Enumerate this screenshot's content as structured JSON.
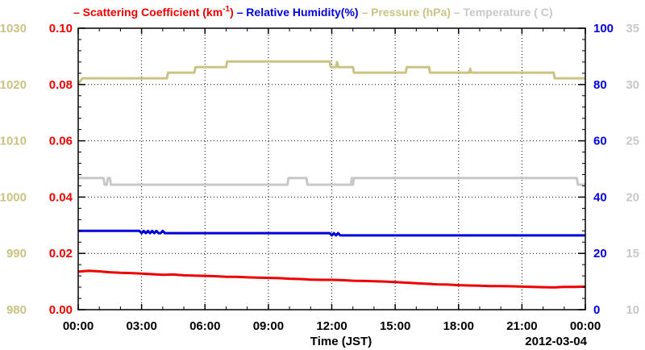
{
  "colors": {
    "scattering": "#ee0000",
    "humidity": "#0000dd",
    "pressure": "#cbc384",
    "temperature": "#c8c8c8",
    "frame": "#000000"
  },
  "legend": [
    {
      "prefix": "– ",
      "label": "Scattering Coefficient (km",
      "sup": "-1",
      "suffix": ")",
      "color_key": "scattering"
    },
    {
      "prefix": "– ",
      "label": "Relative Humidity(%)",
      "sup": "",
      "suffix": "",
      "color_key": "humidity"
    },
    {
      "prefix": "– ",
      "label": "Pressure (hPa)",
      "sup": "",
      "suffix": "",
      "color_key": "pressure"
    },
    {
      "prefix": "– ",
      "label": "Temperature (",
      "sup": "",
      "suffix": "C)",
      "color_key": "temperature"
    }
  ],
  "chart_data": {
    "type": "line",
    "xlabel": "Time (JST)",
    "date_label": "2012-03-04",
    "x_ticks": [
      "00:00",
      "03:00",
      "06:00",
      "09:00",
      "12:00",
      "15:00",
      "18:00",
      "21:00",
      "00:00"
    ],
    "xlim": [
      "00:00",
      "24:00"
    ],
    "grid": true,
    "axes": {
      "pressure": {
        "side": "left-outer",
        "ylim": [
          980,
          1030
        ],
        "ticks": [
          "980",
          "990",
          "1000",
          "1010",
          "1020",
          "1030"
        ]
      },
      "scattering": {
        "side": "left-inner",
        "ylim": [
          0.0,
          0.1
        ],
        "ticks": [
          "0.00",
          "0.02",
          "0.04",
          "0.06",
          "0.08",
          "0.10"
        ]
      },
      "humidity": {
        "side": "right-inner",
        "ylim": [
          0,
          100
        ],
        "ticks": [
          "0",
          "20",
          "40",
          "60",
          "80",
          "100"
        ]
      },
      "temperature": {
        "side": "right-outer",
        "ylim": [
          10,
          35
        ],
        "ticks": [
          "10",
          "15",
          "20",
          "25",
          "30",
          "35"
        ]
      }
    },
    "series": [
      {
        "name": "Pressure (hPa)",
        "axis": "pressure",
        "points": [
          [
            0.0,
            1020.1
          ],
          [
            0.2,
            1021.1
          ],
          [
            4.2,
            1021.1
          ],
          [
            4.25,
            1022.1
          ],
          [
            5.5,
            1022.1
          ],
          [
            5.55,
            1023.1
          ],
          [
            7.0,
            1023.1
          ],
          [
            7.05,
            1024.1
          ],
          [
            11.9,
            1024.1
          ],
          [
            11.95,
            1023.1
          ],
          [
            12.2,
            1023.1
          ],
          [
            12.25,
            1024.0
          ],
          [
            12.3,
            1023.1
          ],
          [
            13.0,
            1023.1
          ],
          [
            13.05,
            1022.1
          ],
          [
            15.5,
            1022.1
          ],
          [
            15.55,
            1023.1
          ],
          [
            16.6,
            1023.1
          ],
          [
            16.65,
            1022.1
          ],
          [
            18.5,
            1022.1
          ],
          [
            18.55,
            1022.8
          ],
          [
            18.6,
            1022.1
          ],
          [
            22.5,
            1022.1
          ],
          [
            22.55,
            1021.1
          ],
          [
            24.0,
            1021.1
          ]
        ]
      },
      {
        "name": "Temperature (C)",
        "axis": "temperature",
        "points": [
          [
            0.0,
            21.7
          ],
          [
            1.2,
            21.7
          ],
          [
            1.25,
            21.1
          ],
          [
            1.35,
            21.1
          ],
          [
            1.4,
            21.7
          ],
          [
            1.5,
            21.7
          ],
          [
            1.55,
            21.1
          ],
          [
            1.65,
            21.1
          ],
          [
            1.7,
            21.1
          ],
          [
            9.9,
            21.1
          ],
          [
            9.95,
            21.7
          ],
          [
            10.8,
            21.7
          ],
          [
            10.85,
            21.1
          ],
          [
            12.9,
            21.1
          ],
          [
            12.95,
            21.7
          ],
          [
            13.0,
            21.1
          ],
          [
            13.05,
            21.7
          ],
          [
            23.6,
            21.7
          ],
          [
            23.65,
            21.1
          ],
          [
            24.0,
            21.1
          ]
        ]
      },
      {
        "name": "Relative Humidity(%)",
        "axis": "humidity",
        "points": [
          [
            0.0,
            28.0
          ],
          [
            2.9,
            28.0
          ],
          [
            3.0,
            27.2
          ],
          [
            3.1,
            28.0
          ],
          [
            3.2,
            27.2
          ],
          [
            3.3,
            28.0
          ],
          [
            3.4,
            27.2
          ],
          [
            3.5,
            28.0
          ],
          [
            3.6,
            27.2
          ],
          [
            3.7,
            28.0
          ],
          [
            3.8,
            27.2
          ],
          [
            3.9,
            27.2
          ],
          [
            4.0,
            28.0
          ],
          [
            4.1,
            27.2
          ],
          [
            4.2,
            27.2
          ],
          [
            11.9,
            27.2
          ],
          [
            12.0,
            26.4
          ],
          [
            12.1,
            27.2
          ],
          [
            12.2,
            26.4
          ],
          [
            12.3,
            27.2
          ],
          [
            12.4,
            26.4
          ],
          [
            24.0,
            26.4
          ]
        ]
      },
      {
        "name": "Scattering Coefficient (km-1)",
        "axis": "scattering",
        "points": [
          [
            0.0,
            0.0135
          ],
          [
            0.5,
            0.0138
          ],
          [
            1.0,
            0.0136
          ],
          [
            1.5,
            0.0133
          ],
          [
            2.0,
            0.0131
          ],
          [
            2.5,
            0.013
          ],
          [
            3.0,
            0.0128
          ],
          [
            3.5,
            0.0126
          ],
          [
            4.0,
            0.0124
          ],
          [
            4.5,
            0.0125
          ],
          [
            5.0,
            0.0122
          ],
          [
            5.5,
            0.0121
          ],
          [
            6.0,
            0.012
          ],
          [
            6.5,
            0.0119
          ],
          [
            7.0,
            0.0117
          ],
          [
            7.5,
            0.0117
          ],
          [
            8.0,
            0.0115
          ],
          [
            8.5,
            0.0114
          ],
          [
            9.0,
            0.0113
          ],
          [
            9.5,
            0.0112
          ],
          [
            10.0,
            0.011
          ],
          [
            10.5,
            0.0109
          ],
          [
            11.0,
            0.0107
          ],
          [
            11.5,
            0.0106
          ],
          [
            12.0,
            0.0106
          ],
          [
            12.5,
            0.0105
          ],
          [
            13.0,
            0.0103
          ],
          [
            13.5,
            0.0102
          ],
          [
            14.0,
            0.0101
          ],
          [
            14.5,
            0.01
          ],
          [
            15.0,
            0.0098
          ],
          [
            15.5,
            0.0096
          ],
          [
            16.0,
            0.0094
          ],
          [
            16.5,
            0.0092
          ],
          [
            17.0,
            0.009
          ],
          [
            17.5,
            0.0089
          ],
          [
            18.0,
            0.0087
          ],
          [
            18.5,
            0.0086
          ],
          [
            19.0,
            0.0085
          ],
          [
            19.5,
            0.0084
          ],
          [
            20.0,
            0.0084
          ],
          [
            20.5,
            0.0083
          ],
          [
            21.0,
            0.0082
          ],
          [
            21.5,
            0.0081
          ],
          [
            22.0,
            0.008
          ],
          [
            22.5,
            0.0079
          ],
          [
            23.0,
            0.0081
          ],
          [
            23.5,
            0.0081
          ],
          [
            24.0,
            0.0082
          ]
        ]
      }
    ]
  }
}
